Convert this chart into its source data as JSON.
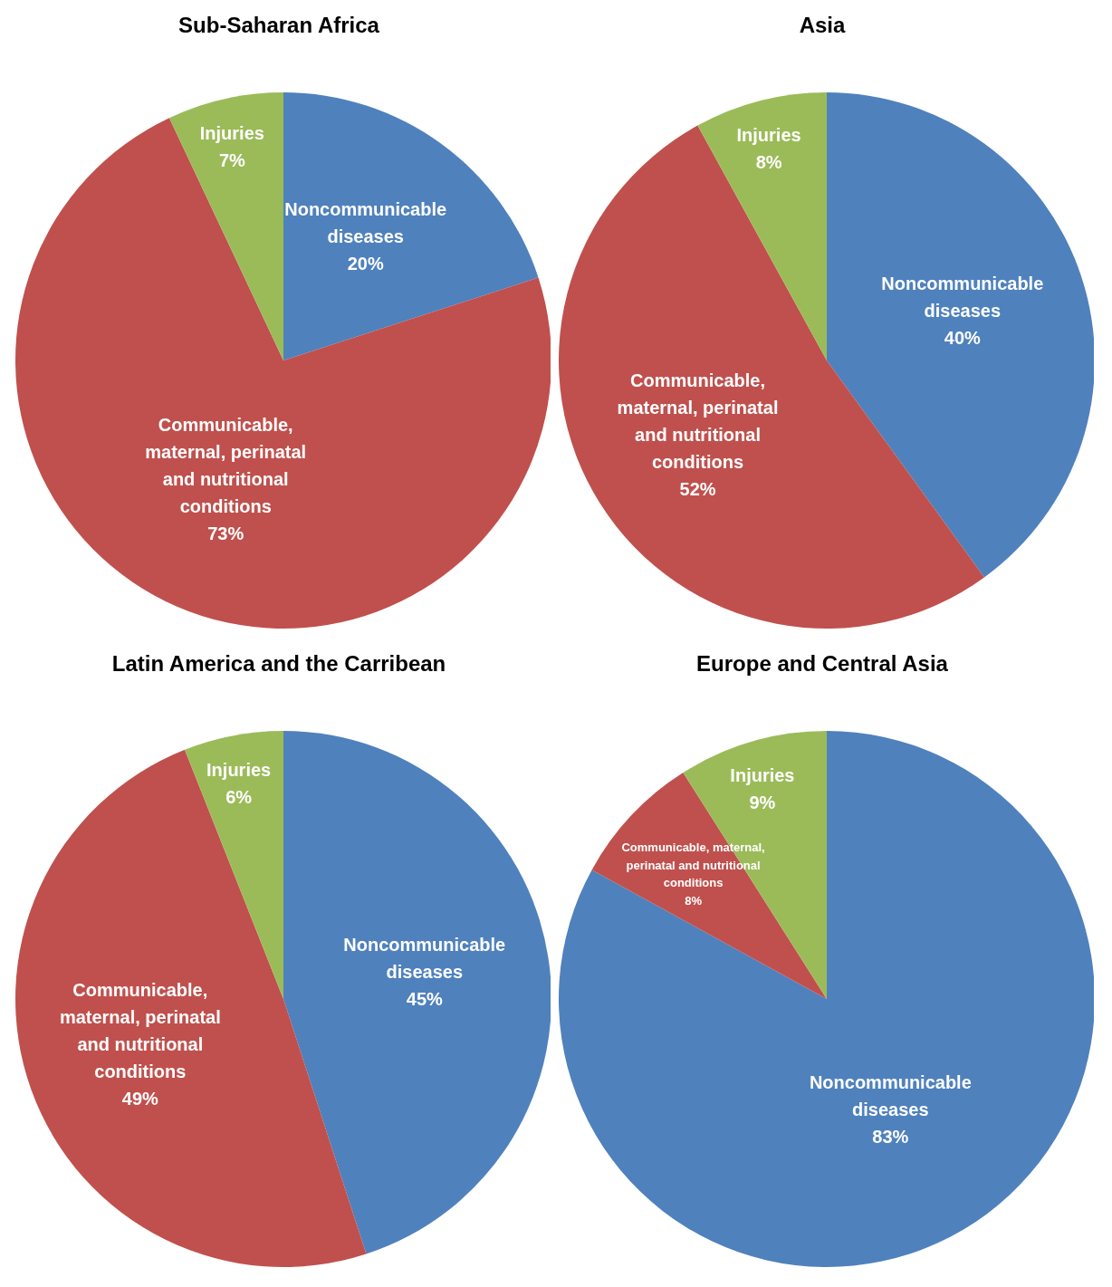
{
  "chart_data": [
    {
      "type": "pie",
      "title": "Sub-Saharan Africa",
      "categories": [
        "Noncommunicable diseases",
        "Communicable, maternal, perinatal and nutritional conditions",
        "Injuries"
      ],
      "values": [
        20,
        73,
        7
      ],
      "value_labels": [
        "20%",
        "73%",
        "7%"
      ],
      "colors": [
        "#4f81bd",
        "#c0504d",
        "#9bbb59"
      ]
    },
    {
      "type": "pie",
      "title": "Asia",
      "categories": [
        "Noncommunicable diseases",
        "Communicable, maternal, perinatal and nutritional conditions",
        "Injuries"
      ],
      "values": [
        40,
        52,
        8
      ],
      "value_labels": [
        "40%",
        "52%",
        "8%"
      ],
      "colors": [
        "#4f81bd",
        "#c0504d",
        "#9bbb59"
      ]
    },
    {
      "type": "pie",
      "title": "Latin America and the Carribean",
      "categories": [
        "Noncommunicable diseases",
        "Communicable, maternal, perinatal and nutritional conditions",
        "Injuries"
      ],
      "values": [
        45,
        49,
        6
      ],
      "value_labels": [
        "45%",
        "49%",
        "6%"
      ],
      "colors": [
        "#4f81bd",
        "#c0504d",
        "#9bbb59"
      ]
    },
    {
      "type": "pie",
      "title": "Europe and Central Asia",
      "categories": [
        "Noncommunicable diseases",
        "Communicable, maternal, perinatal and nutritional conditions",
        "Injuries"
      ],
      "values": [
        83,
        8,
        9
      ],
      "value_labels": [
        "83%",
        "8%",
        "9%"
      ],
      "colors": [
        "#4f81bd",
        "#c0504d",
        "#9bbb59"
      ]
    }
  ]
}
